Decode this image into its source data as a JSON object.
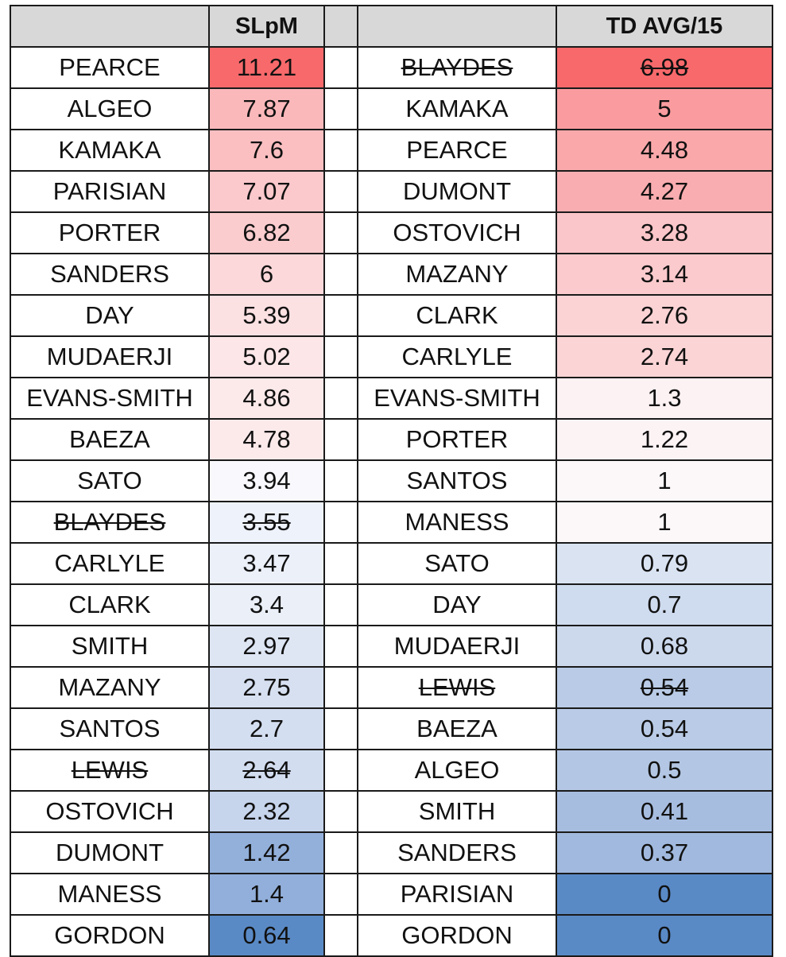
{
  "headers": {
    "left_name": "",
    "left_value": "SLpM",
    "gap": "",
    "right_name": "",
    "right_value": "TD AVG/15"
  },
  "rows": [
    {
      "left_name": "PEARCE",
      "left_value": "11.21",
      "left_color": "#f8696b",
      "left_strike": false,
      "right_name": "BLAYDES",
      "right_value": "6.98",
      "right_color": "#f8696b",
      "right_strike": true
    },
    {
      "left_name": "ALGEO",
      "left_value": "7.87",
      "left_color": "#fbb8bb",
      "left_strike": false,
      "right_name": "KAMAKA",
      "right_value": "5",
      "right_color": "#fa9c9f",
      "right_strike": false
    },
    {
      "left_name": "KAMAKA",
      "left_value": "7.6",
      "left_color": "#fbbfc1",
      "left_strike": false,
      "right_name": "PEARCE",
      "right_value": "4.48",
      "right_color": "#faa8aa",
      "right_strike": false
    },
    {
      "left_name": "PARISIAN",
      "left_value": "7.07",
      "left_color": "#fbc8cb",
      "left_strike": false,
      "right_name": "DUMONT",
      "right_value": "4.27",
      "right_color": "#faadb0",
      "right_strike": false
    },
    {
      "left_name": "PORTER",
      "left_value": "6.82",
      "left_color": "#fbccce",
      "left_strike": false,
      "right_name": "OSTOVICH",
      "right_value": "3.28",
      "right_color": "#fbc6c9",
      "right_strike": false
    },
    {
      "left_name": "SANDERS",
      "left_value": "6",
      "left_color": "#fcd8da",
      "left_strike": false,
      "right_name": "MAZANY",
      "right_value": "3.14",
      "right_color": "#fbcacc",
      "right_strike": false
    },
    {
      "left_name": "DAY",
      "left_value": "5.39",
      "left_color": "#fce1e3",
      "left_strike": false,
      "right_name": "CLARK",
      "right_value": "2.76",
      "right_color": "#fbd3d5",
      "right_strike": false
    },
    {
      "left_name": "MUDAERJI",
      "left_value": "5.02",
      "left_color": "#fce6e8",
      "left_strike": false,
      "right_name": "CARLYLE",
      "right_value": "2.74",
      "right_color": "#fbd4d6",
      "right_strike": false
    },
    {
      "left_name": "EVANS-SMITH",
      "left_value": "4.86",
      "left_color": "#fce9ea",
      "left_strike": false,
      "right_name": "EVANS-SMITH",
      "right_value": "1.3",
      "right_color": "#fcf1f3",
      "right_strike": false
    },
    {
      "left_name": "BAEZA",
      "left_value": "4.78",
      "left_color": "#fceaeb",
      "left_strike": false,
      "right_name": "PORTER",
      "right_value": "1.22",
      "right_color": "#fcf3f5",
      "right_strike": false
    },
    {
      "left_name": "SATO",
      "left_value": "3.94",
      "left_color": "#f9f8fc",
      "left_strike": false,
      "right_name": "SANTOS",
      "right_value": "1",
      "right_color": "#fcf8fa",
      "right_strike": false
    },
    {
      "left_name": "BLAYDES",
      "left_value": "3.55",
      "left_color": "#eef2fa",
      "left_strike": true,
      "right_name": "MANESS",
      "right_value": "1",
      "right_color": "#fcf8fa",
      "right_strike": false
    },
    {
      "left_name": "CARLYLE",
      "left_value": "3.47",
      "left_color": "#ecf0f9",
      "left_strike": false,
      "right_name": "SATO",
      "right_value": "0.79",
      "right_color": "#d9e3f2",
      "right_strike": false
    },
    {
      "left_name": "CLARK",
      "left_value": "3.4",
      "left_color": "#eaeff8",
      "left_strike": false,
      "right_name": "DAY",
      "right_value": "0.7",
      "right_color": "#cfdbee",
      "right_strike": false
    },
    {
      "left_name": "SMITH",
      "left_value": "2.97",
      "left_color": "#dee6f4",
      "left_strike": false,
      "right_name": "MUDAERJI",
      "right_value": "0.68",
      "right_color": "#ccd9ed",
      "right_strike": false
    },
    {
      "left_name": "MAZANY",
      "left_value": "2.75",
      "left_color": "#d6e0f1",
      "left_strike": false,
      "right_name": "LEWIS",
      "right_value": "0.54",
      "right_color": "#b9cbe6",
      "right_strike": true
    },
    {
      "left_name": "SANTOS",
      "left_value": "2.7",
      "left_color": "#d4def1",
      "left_strike": false,
      "right_name": "BAEZA",
      "right_value": "0.54",
      "right_color": "#b9cbe6",
      "right_strike": false
    },
    {
      "left_name": "LEWIS",
      "left_value": "2.64",
      "left_color": "#d2ddf0",
      "left_strike": true,
      "right_name": "ALGEO",
      "right_value": "0.5",
      "right_color": "#b3c7e4",
      "right_strike": false
    },
    {
      "left_name": "OSTOVICH",
      "left_value": "2.32",
      "left_color": "#c6d4ec",
      "left_strike": false,
      "right_name": "SMITH",
      "right_value": "0.41",
      "right_color": "#a7bde0",
      "right_strike": false
    },
    {
      "left_name": "DUMONT",
      "left_value": "1.42",
      "left_color": "#93b0db",
      "left_strike": false,
      "right_name": "SANDERS",
      "right_value": "0.37",
      "right_color": "#a1b9de",
      "right_strike": false
    },
    {
      "left_name": "MANESS",
      "left_value": "1.4",
      "left_color": "#92afdb",
      "left_strike": false,
      "right_name": "PARISIAN",
      "right_value": "0",
      "right_color": "#5a8ac6",
      "right_strike": false
    },
    {
      "left_name": "GORDON",
      "left_value": "0.64",
      "left_color": "#5a8ac6",
      "left_strike": false,
      "right_name": "GORDON",
      "right_value": "0",
      "right_color": "#5a8ac6",
      "right_strike": false
    }
  ]
}
